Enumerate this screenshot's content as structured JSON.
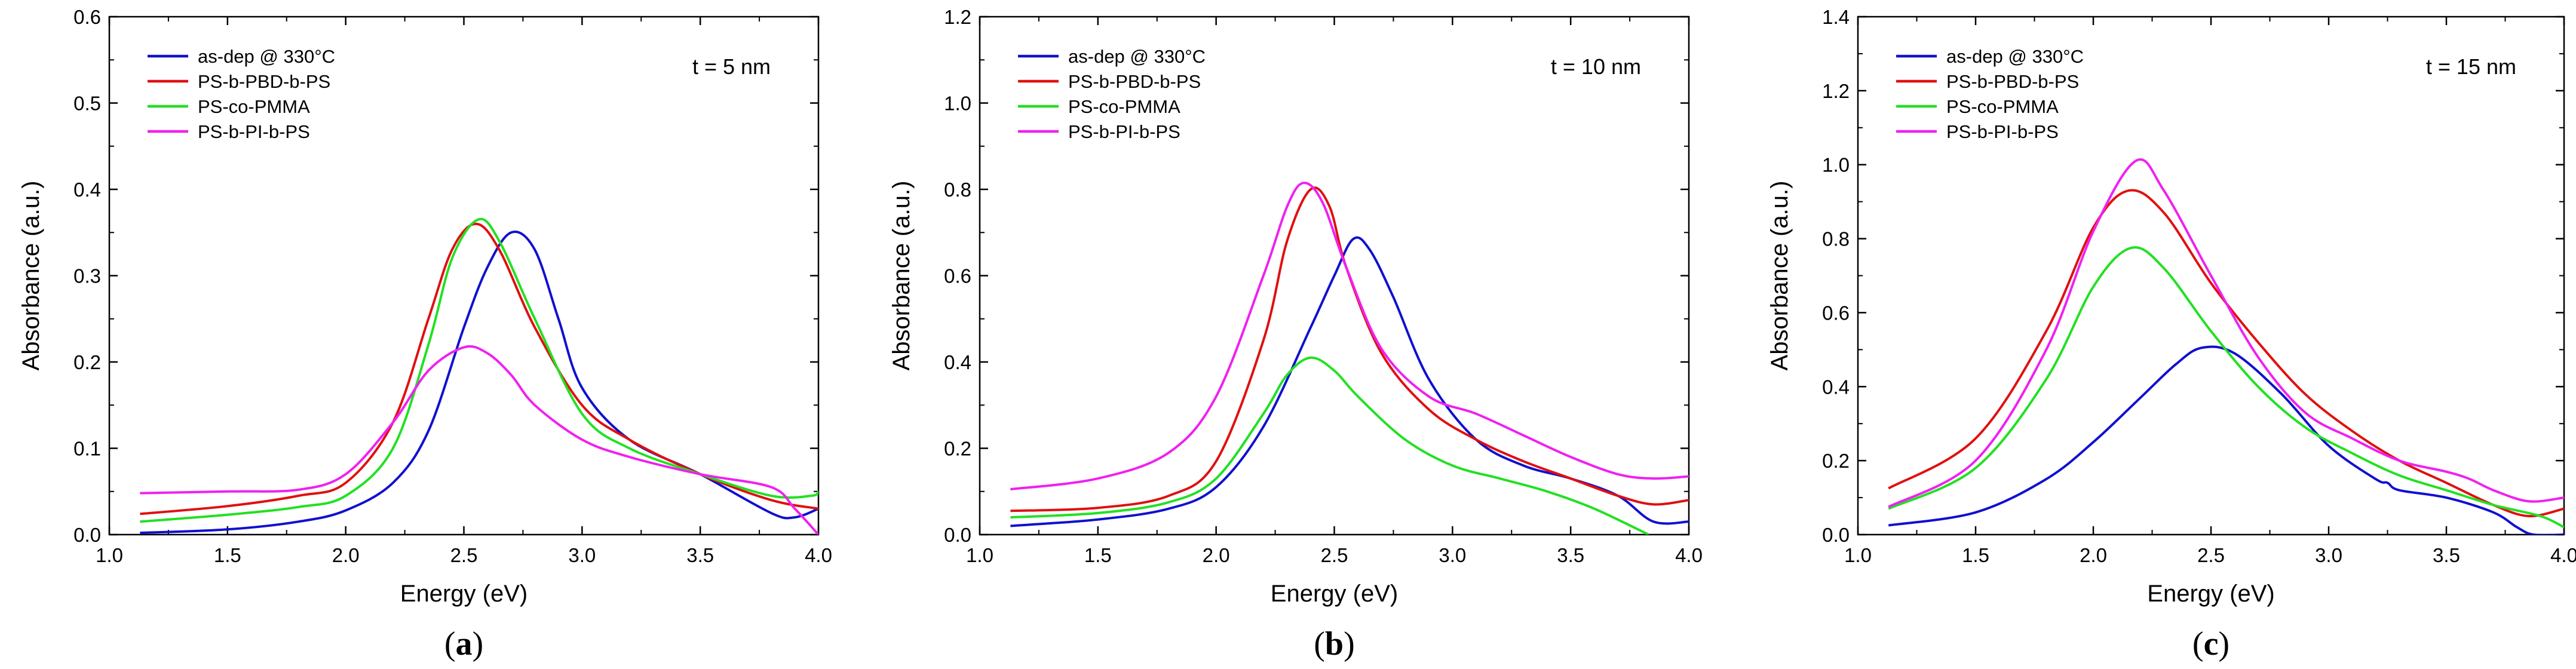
{
  "legend": [
    "as-dep @ 330°C",
    "PS-b-PBD-b-PS",
    "PS-co-PMMA",
    "PS-b-PI-b-PS"
  ],
  "colors": {
    "as-dep @ 330°C": "#1010d0",
    "PS-b-PBD-b-PS": "#e01010",
    "PS-co-PMMA": "#22e022",
    "PS-b-PI-b-PS": "#f020f0"
  },
  "chart_data": [
    {
      "type": "line",
      "panel_label": "a",
      "annotation": "t = 5 nm",
      "xlabel": "Energy (eV)",
      "ylabel": "Absorbance (a.u.)",
      "xlim": [
        1.0,
        4.0
      ],
      "ylim": [
        0.0,
        0.6
      ],
      "xticks": [
        1.0,
        1.5,
        2.0,
        2.5,
        3.0,
        3.5,
        4.0
      ],
      "yticks": [
        0.0,
        0.1,
        0.2,
        0.3,
        0.4,
        0.5,
        0.6
      ],
      "tick_decimals": 1,
      "legend_position": "top-left",
      "series": [
        {
          "name": "as-dep @ 330°C",
          "x": [
            1.13,
            1.5,
            1.8,
            2.0,
            2.2,
            2.35,
            2.5,
            2.6,
            2.7,
            2.8,
            2.9,
            3.0,
            3.2,
            3.5,
            3.8,
            3.9,
            4.0
          ],
          "y": [
            0.002,
            0.006,
            0.015,
            0.028,
            0.06,
            0.12,
            0.24,
            0.31,
            0.35,
            0.33,
            0.25,
            0.17,
            0.11,
            0.07,
            0.025,
            0.02,
            0.03
          ]
        },
        {
          "name": "PS-b-PBD-b-PS",
          "x": [
            1.13,
            1.5,
            1.8,
            2.0,
            2.2,
            2.35,
            2.45,
            2.55,
            2.65,
            2.8,
            3.0,
            3.2,
            3.5,
            3.8,
            4.0
          ],
          "y": [
            0.024,
            0.033,
            0.045,
            0.06,
            0.13,
            0.25,
            0.33,
            0.36,
            0.33,
            0.24,
            0.15,
            0.11,
            0.07,
            0.04,
            0.03
          ]
        },
        {
          "name": "PS-co-PMMA",
          "x": [
            1.13,
            1.5,
            1.8,
            2.0,
            2.2,
            2.35,
            2.45,
            2.56,
            2.65,
            2.8,
            3.0,
            3.2,
            3.5,
            3.8,
            3.97,
            4.0
          ],
          "y": [
            0.015,
            0.023,
            0.032,
            0.045,
            0.1,
            0.22,
            0.32,
            0.365,
            0.34,
            0.25,
            0.14,
            0.1,
            0.07,
            0.045,
            0.045,
            0.05
          ]
        },
        {
          "name": "PS-b-PI-b-PS",
          "x": [
            1.13,
            1.5,
            1.8,
            2.0,
            2.2,
            2.35,
            2.5,
            2.6,
            2.7,
            2.8,
            3.0,
            3.2,
            3.5,
            3.8,
            3.9,
            4.0
          ],
          "y": [
            0.048,
            0.05,
            0.052,
            0.07,
            0.13,
            0.19,
            0.217,
            0.21,
            0.185,
            0.15,
            0.11,
            0.09,
            0.07,
            0.055,
            0.03,
            0.0
          ]
        }
      ]
    },
    {
      "type": "line",
      "panel_label": "b",
      "annotation": "t = 10 nm",
      "xlabel": "Energy (eV)",
      "ylabel": "Absorbance (a.u.)",
      "xlim": [
        1.0,
        4.0
      ],
      "ylim": [
        0.0,
        1.2
      ],
      "xticks": [
        1.0,
        1.5,
        2.0,
        2.5,
        3.0,
        3.5,
        4.0
      ],
      "yticks": [
        0.0,
        0.2,
        0.4,
        0.6,
        0.8,
        1.0,
        1.2
      ],
      "tick_decimals": 1,
      "legend_position": "top-left",
      "series": [
        {
          "name": "as-dep @ 330°C",
          "x": [
            1.13,
            1.5,
            1.8,
            2.0,
            2.2,
            2.4,
            2.5,
            2.58,
            2.65,
            2.75,
            2.9,
            3.1,
            3.3,
            3.5,
            3.7,
            3.85,
            4.0
          ],
          "y": [
            0.02,
            0.035,
            0.06,
            0.11,
            0.25,
            0.48,
            0.6,
            0.685,
            0.66,
            0.55,
            0.36,
            0.22,
            0.16,
            0.13,
            0.09,
            0.03,
            0.03
          ]
        },
        {
          "name": "PS-b-PBD-b-PS",
          "x": [
            1.13,
            1.5,
            1.8,
            2.0,
            2.2,
            2.3,
            2.4,
            2.48,
            2.55,
            2.7,
            2.9,
            3.1,
            3.3,
            3.5,
            3.7,
            3.85,
            4.0
          ],
          "y": [
            0.055,
            0.062,
            0.09,
            0.17,
            0.45,
            0.68,
            0.8,
            0.76,
            0.62,
            0.42,
            0.29,
            0.22,
            0.17,
            0.13,
            0.09,
            0.07,
            0.08
          ]
        },
        {
          "name": "PS-co-PMMA",
          "x": [
            1.13,
            1.5,
            1.8,
            2.0,
            2.2,
            2.3,
            2.4,
            2.5,
            2.6,
            2.8,
            3.0,
            3.2,
            3.4,
            3.6,
            3.83
          ],
          "y": [
            0.04,
            0.05,
            0.075,
            0.13,
            0.28,
            0.37,
            0.41,
            0.38,
            0.32,
            0.22,
            0.16,
            0.13,
            0.1,
            0.06,
            0.0
          ]
        },
        {
          "name": "PS-b-PI-b-PS",
          "x": [
            1.13,
            1.5,
            1.8,
            2.0,
            2.2,
            2.3,
            2.37,
            2.45,
            2.55,
            2.7,
            2.9,
            3.1,
            3.3,
            3.5,
            3.7,
            3.85,
            4.0
          ],
          "y": [
            0.105,
            0.13,
            0.19,
            0.32,
            0.6,
            0.76,
            0.815,
            0.77,
            0.62,
            0.43,
            0.32,
            0.28,
            0.23,
            0.18,
            0.14,
            0.13,
            0.135
          ]
        }
      ]
    },
    {
      "type": "line",
      "panel_label": "c",
      "annotation": "t = 15 nm",
      "xlabel": "Energy (eV)",
      "ylabel": "Absorbance (a.u.)",
      "xlim": [
        1.0,
        4.0
      ],
      "ylim": [
        0.0,
        1.4
      ],
      "xticks": [
        1.0,
        1.5,
        2.0,
        2.5,
        3.0,
        3.5,
        4.0
      ],
      "yticks": [
        0.0,
        0.2,
        0.4,
        0.6,
        0.8,
        1.0,
        1.2,
        1.4
      ],
      "tick_decimals": 1,
      "legend_position": "top-left",
      "series": [
        {
          "name": "as-dep @ 330°C",
          "x": [
            1.13,
            1.5,
            1.8,
            2.0,
            2.2,
            2.35,
            2.46,
            2.6,
            2.8,
            3.0,
            3.2,
            3.25,
            3.3,
            3.5,
            3.7,
            3.8,
            3.87,
            4.0
          ],
          "y": [
            0.025,
            0.06,
            0.15,
            0.25,
            0.37,
            0.46,
            0.505,
            0.49,
            0.38,
            0.24,
            0.15,
            0.14,
            0.12,
            0.1,
            0.06,
            0.02,
            0.0,
            0.0
          ]
        },
        {
          "name": "PS-b-PBD-b-PS",
          "x": [
            1.13,
            1.5,
            1.8,
            2.0,
            2.15,
            2.3,
            2.5,
            2.7,
            2.9,
            3.1,
            3.3,
            3.5,
            3.7,
            3.85,
            4.0
          ],
          "y": [
            0.125,
            0.26,
            0.55,
            0.83,
            0.93,
            0.87,
            0.68,
            0.52,
            0.38,
            0.28,
            0.2,
            0.14,
            0.08,
            0.05,
            0.07
          ]
        },
        {
          "name": "PS-co-PMMA",
          "x": [
            1.13,
            1.5,
            1.8,
            2.0,
            2.16,
            2.3,
            2.5,
            2.7,
            2.9,
            3.1,
            3.3,
            3.5,
            3.7,
            3.9,
            4.0
          ],
          "y": [
            0.07,
            0.18,
            0.42,
            0.67,
            0.775,
            0.72,
            0.55,
            0.4,
            0.29,
            0.22,
            0.16,
            0.12,
            0.08,
            0.05,
            0.02
          ]
        },
        {
          "name": "PS-b-PI-b-PS",
          "x": [
            1.13,
            1.5,
            1.8,
            2.0,
            2.18,
            2.3,
            2.5,
            2.7,
            2.9,
            3.1,
            3.3,
            3.5,
            3.6,
            3.7,
            3.85,
            4.0
          ],
          "y": [
            0.075,
            0.2,
            0.5,
            0.82,
            1.01,
            0.93,
            0.7,
            0.48,
            0.33,
            0.26,
            0.2,
            0.17,
            0.15,
            0.12,
            0.09,
            0.1
          ]
        }
      ]
    }
  ]
}
